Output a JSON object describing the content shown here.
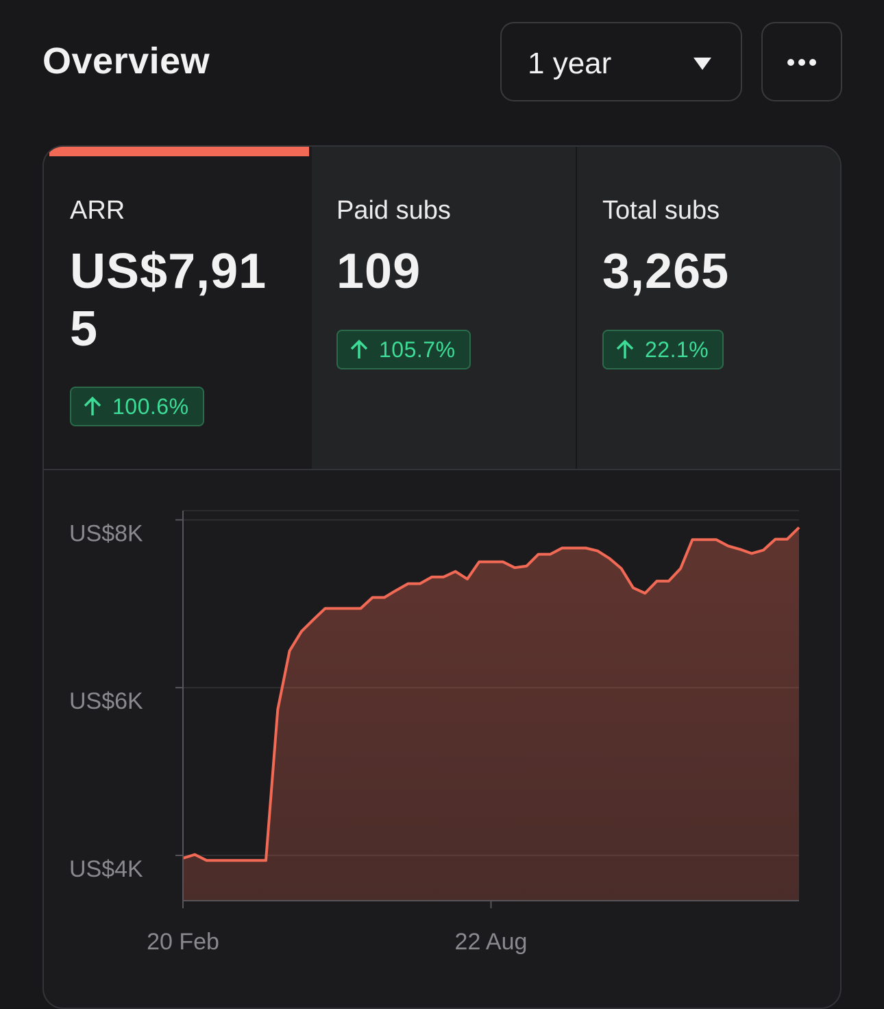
{
  "header": {
    "title": "Overview",
    "period": "1 year"
  },
  "metrics": [
    {
      "label": "ARR",
      "value": "US$7,915",
      "change": "100.6%"
    },
    {
      "label": "Paid subs",
      "value": "109",
      "change": "105.7%"
    },
    {
      "label": "Total subs",
      "value": "3,265",
      "change": "22.1%"
    }
  ],
  "chart_data": {
    "type": "area",
    "categories": [
      "20 Feb",
      null,
      null,
      null,
      null,
      null,
      null,
      null,
      null,
      null,
      null,
      null,
      null,
      null,
      null,
      null,
      null,
      null,
      null,
      null,
      null,
      null,
      null,
      null,
      null,
      null,
      "22 Aug",
      null,
      null,
      null,
      null,
      null,
      null,
      null,
      null,
      null,
      null,
      null,
      null,
      null,
      null,
      null,
      null,
      null,
      null,
      null,
      null,
      null,
      null,
      null,
      null,
      null,
      null
    ],
    "values": [
      3967,
      4010,
      3940,
      3940,
      3940,
      3940,
      3940,
      3940,
      5740,
      6440,
      6670,
      6810,
      6945,
      6945,
      6945,
      6945,
      7075,
      7075,
      7160,
      7240,
      7240,
      7320,
      7320,
      7385,
      7295,
      7500,
      7500,
      7500,
      7430,
      7450,
      7590,
      7590,
      7665,
      7665,
      7665,
      7630,
      7540,
      7420,
      7190,
      7125,
      7270,
      7270,
      7420,
      7765,
      7765,
      7765,
      7690,
      7650,
      7600,
      7640,
      7770,
      7770,
      7910
    ],
    "color": "#f26a55",
    "ylim": [
      3460,
      8110
    ],
    "yticks": [
      {
        "value": 4000,
        "label": "US$4K"
      },
      {
        "value": 6000,
        "label": "US$6K"
      },
      {
        "value": 8000,
        "label": "US$8K"
      }
    ],
    "grid": true
  }
}
